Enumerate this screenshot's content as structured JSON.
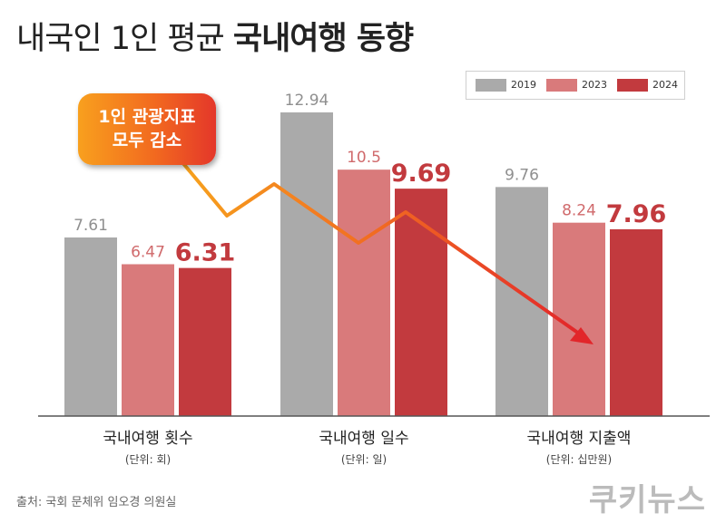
{
  "title": {
    "regular": "내국인 1인 평균",
    "bold": "국내여행 동향"
  },
  "callout": {
    "line1": "1인 관광지표",
    "line2": "모두 감소"
  },
  "legend": [
    {
      "label": "2019",
      "color": "#aaaaaa"
    },
    {
      "label": "2023",
      "color": "#d97a7b"
    },
    {
      "label": "2024",
      "color": "#c23a3e"
    }
  ],
  "chart_data": {
    "type": "bar",
    "groups": [
      {
        "label": "국내여행 횟수",
        "unit": "(단위: 회)",
        "values": [
          "7.61",
          "6.47",
          "6.31"
        ]
      },
      {
        "label": "국내여행 일수",
        "unit": "(단위: 일)",
        "values": [
          "12.94",
          "10.5",
          "9.69"
        ]
      },
      {
        "label": "국내여행 지출액",
        "unit": "(단위: 십만원)",
        "values": [
          "9.76",
          "8.24",
          "7.96"
        ]
      }
    ],
    "series": [
      "2019",
      "2023",
      "2024"
    ],
    "grid": false,
    "legend_position": "top-right"
  },
  "source": "출처: 국회 문체위 임오경 의원실",
  "brand": "쿠키뉴스"
}
